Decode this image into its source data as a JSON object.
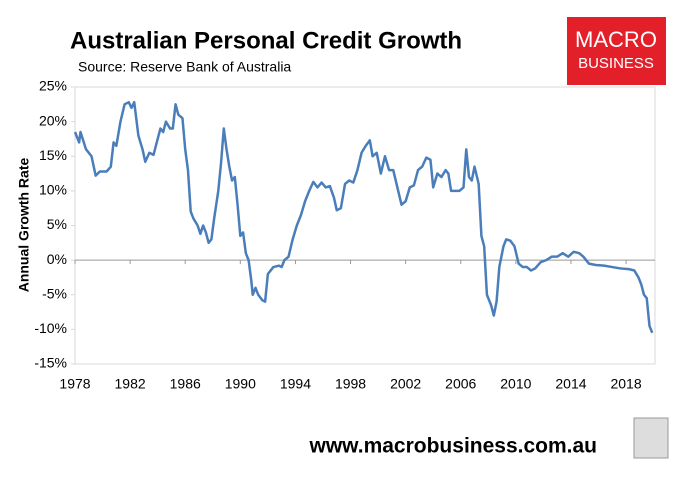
{
  "chart_data": {
    "type": "line",
    "title": "Australian Personal Credit Growth",
    "subtitle": "Source: Reserve Bank of Australia",
    "y_label": "Annual Growth Rate",
    "logo": [
      "MACRO",
      "BUSINESS"
    ],
    "footer": "www.macrobusiness.com.au",
    "xlim": [
      1978,
      2020.1
    ],
    "xticks": [
      1978,
      1982,
      1986,
      1990,
      1994,
      1998,
      2002,
      2006,
      2010,
      2014,
      2018
    ],
    "ylim": [
      -15,
      25
    ],
    "yticks": [
      {
        "value": -15,
        "label": "-15%"
      },
      {
        "value": -10,
        "label": "-10%"
      },
      {
        "value": -5,
        "label": "-5%"
      },
      {
        "value": 0,
        "label": "0%"
      },
      {
        "value": 5,
        "label": "5%"
      },
      {
        "value": 10,
        "label": "10%"
      },
      {
        "value": 15,
        "label": "15%"
      },
      {
        "value": 20,
        "label": "20%"
      },
      {
        "value": 25,
        "label": "25%"
      }
    ],
    "grid": false,
    "series": [
      {
        "name": "Annual Growth Rate",
        "color": "#4a7ebb",
        "x": [
          1978.0,
          1978.3,
          1978.4,
          1978.8,
          1979.2,
          1979.5,
          1979.8,
          1980.3,
          1980.6,
          1980.8,
          1981.0,
          1981.3,
          1981.6,
          1981.9,
          1982.1,
          1982.3,
          1982.6,
          1982.9,
          1983.1,
          1983.4,
          1983.7,
          1984.0,
          1984.2,
          1984.4,
          1984.6,
          1984.9,
          1985.1,
          1985.3,
          1985.5,
          1985.8,
          1986.0,
          1986.2,
          1986.4,
          1986.6,
          1986.9,
          1987.1,
          1987.3,
          1987.5,
          1987.7,
          1987.9,
          1988.1,
          1988.4,
          1988.6,
          1988.8,
          1989.0,
          1989.2,
          1989.4,
          1989.6,
          1989.8,
          1990.0,
          1990.2,
          1990.4,
          1990.6,
          1990.8,
          1990.9,
          1991.1,
          1991.3,
          1991.6,
          1991.8,
          1992.0,
          1992.4,
          1992.8,
          1993.0,
          1993.2,
          1993.5,
          1993.8,
          1994.1,
          1994.4,
          1994.7,
          1995.0,
          1995.3,
          1995.6,
          1995.9,
          1996.2,
          1996.5,
          1996.8,
          1997.0,
          1997.3,
          1997.6,
          1997.9,
          1998.2,
          1998.5,
          1998.8,
          1999.1,
          1999.4,
          1999.6,
          1999.9,
          2000.2,
          2000.5,
          2000.8,
          2001.1,
          2001.4,
          2001.7,
          2002.0,
          2002.3,
          2002.6,
          2002.9,
          2003.2,
          2003.5,
          2003.8,
          2004.0,
          2004.3,
          2004.6,
          2004.9,
          2005.1,
          2005.3,
          2005.6,
          2005.9,
          2006.2,
          2006.4,
          2006.6,
          2006.8,
          2007.0,
          2007.3,
          2007.5,
          2007.7,
          2007.9,
          2008.2,
          2008.4,
          2008.6,
          2008.8,
          2009.1,
          2009.3,
          2009.6,
          2009.9,
          2010.2,
          2010.5,
          2010.8,
          2011.1,
          2011.4,
          2011.8,
          2012.2,
          2012.6,
          2013.0,
          2013.4,
          2013.8,
          2014.2,
          2014.6,
          2014.9,
          2015.3,
          2015.8,
          2016.4,
          2017.0,
          2017.6,
          2018.2,
          2018.6,
          2018.9,
          2019.1,
          2019.3,
          2019.5,
          2019.7,
          2019.9
        ],
        "values": [
          18.5,
          17,
          18.5,
          16,
          15,
          12.2,
          12.8,
          12.8,
          13.5,
          17,
          16.5,
          20,
          22.5,
          22.8,
          22,
          22.8,
          18,
          16,
          14.2,
          15.5,
          15.2,
          17.5,
          19,
          18.5,
          20,
          19,
          19,
          22.5,
          21,
          20.5,
          16,
          13,
          7,
          6,
          5,
          3.8,
          5,
          4,
          2.5,
          3,
          6,
          10,
          14,
          19,
          16,
          13.5,
          11.5,
          12,
          8,
          3.5,
          4,
          1,
          0,
          -3,
          -5,
          -4,
          -5,
          -5.8,
          -6,
          -2,
          -1,
          -0.8,
          -1,
          0,
          0.5,
          3,
          5,
          6.5,
          8.5,
          10,
          11.3,
          10.5,
          11.2,
          10.5,
          10.7,
          9,
          7.2,
          7.5,
          11,
          11.5,
          11.2,
          13,
          15.5,
          16.5,
          17.3,
          15,
          15.5,
          12.5,
          15,
          13,
          13,
          10.5,
          8,
          8.5,
          10.5,
          10.8,
          13,
          13.5,
          14.8,
          14.5,
          10.5,
          12.5,
          12,
          13,
          12.5,
          10,
          10,
          10,
          10.5,
          16,
          12,
          11.5,
          13.5,
          11,
          3.5,
          2,
          -5,
          -6.5,
          -8,
          -6,
          -1,
          2,
          3,
          2.8,
          2,
          -0.5,
          -1,
          -1,
          -1.5,
          -1.2,
          -0.3,
          0,
          0.5,
          0.5,
          1,
          0.5,
          1.2,
          1,
          0.5,
          -0.5,
          -0.7,
          -0.8,
          -1,
          -1.2,
          -1.3,
          -1.5,
          -2.5,
          -3.5,
          -5,
          -5.5,
          -9.5,
          -10.5
        ]
      }
    ]
  }
}
